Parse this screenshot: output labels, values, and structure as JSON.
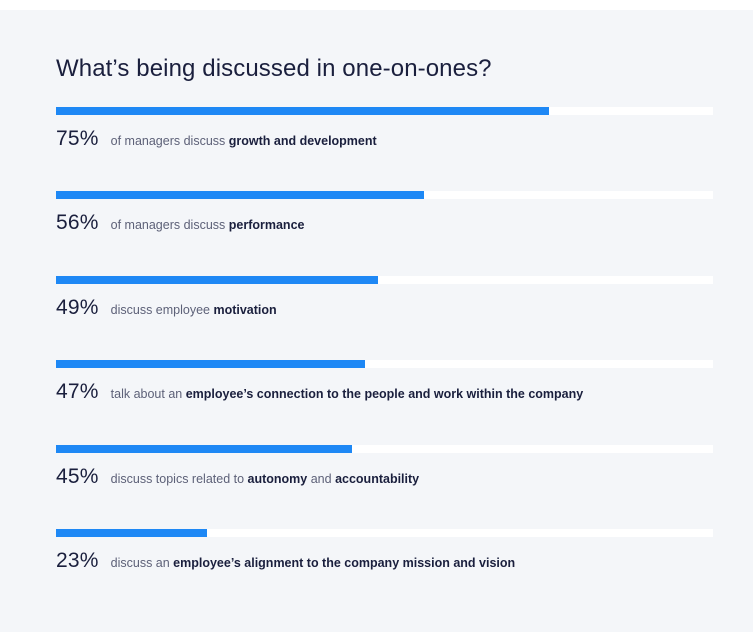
{
  "title": "What’s being discussed in one-on-ones?",
  "chart_data": {
    "type": "bar",
    "orientation": "horizontal",
    "xlim": [
      0,
      100
    ],
    "bar_color": "#1e88f5",
    "track_color": "#ffffff",
    "background_color": "#f4f6f9",
    "rows": [
      {
        "value": 75,
        "value_label": "75%",
        "parts": [
          {
            "text": "of managers discuss ",
            "bold": false
          },
          {
            "text": "growth and development",
            "bold": true
          }
        ]
      },
      {
        "value": 56,
        "value_label": "56%",
        "parts": [
          {
            "text": "of managers discuss ",
            "bold": false
          },
          {
            "text": "performance",
            "bold": true
          }
        ]
      },
      {
        "value": 49,
        "value_label": "49%",
        "parts": [
          {
            "text": "discuss employee ",
            "bold": false
          },
          {
            "text": "motivation",
            "bold": true
          }
        ]
      },
      {
        "value": 47,
        "value_label": "47%",
        "parts": [
          {
            "text": "talk about an ",
            "bold": false
          },
          {
            "text": "employee’s connection to the people and work within the company",
            "bold": true
          }
        ]
      },
      {
        "value": 45,
        "value_label": "45%",
        "parts": [
          {
            "text": "discuss topics related to ",
            "bold": false
          },
          {
            "text": "autonomy",
            "bold": true
          },
          {
            "text": " and ",
            "bold": false
          },
          {
            "text": "accountability",
            "bold": true
          }
        ]
      },
      {
        "value": 23,
        "value_label": "23%",
        "parts": [
          {
            "text": "discuss an ",
            "bold": false
          },
          {
            "text": "employee’s alignment to the company mission and vision",
            "bold": true
          }
        ]
      }
    ]
  }
}
